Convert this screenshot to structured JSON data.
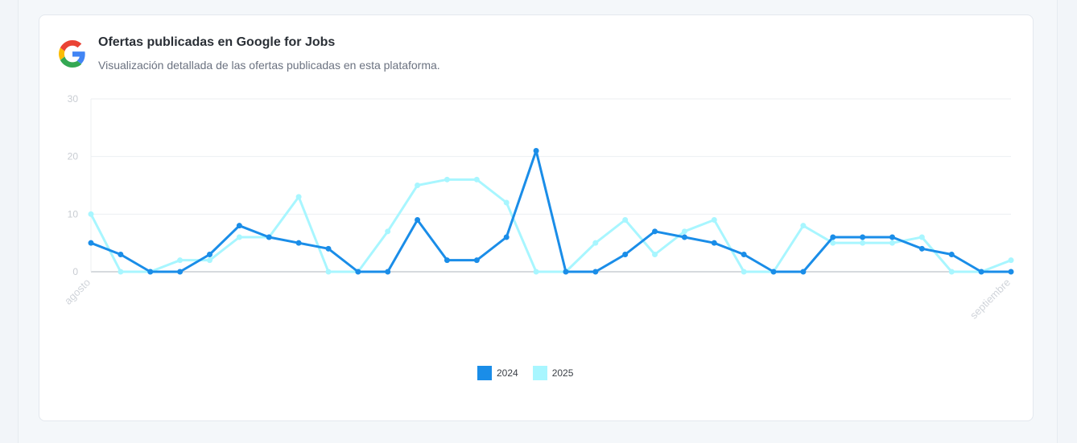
{
  "header": {
    "title": "Ofertas publicadas en Google for Jobs",
    "subtitle": "Visualización detallada de las ofertas publicadas en esta plataforma."
  },
  "logo": {
    "icon": "google-g-icon"
  },
  "chart_data": {
    "type": "line",
    "x": [
      "agosto",
      "",
      "",
      "",
      "",
      "",
      "",
      "",
      "",
      "",
      "",
      "",
      "",
      "",
      "",
      "",
      "",
      "",
      "",
      "",
      "",
      "",
      "",
      "",
      "",
      "",
      "",
      "",
      "",
      "",
      "",
      "septiembre"
    ],
    "x_tick_labels": [
      "agosto",
      "septiembre"
    ],
    "ylim": [
      0,
      30
    ],
    "y_ticks": [
      0,
      10,
      20,
      30
    ],
    "grid": true,
    "legend": "bottom-center",
    "series": [
      {
        "name": "2024",
        "color": "#1a8de8",
        "values": [
          5,
          3,
          0,
          0,
          3,
          8,
          6,
          5,
          4,
          0,
          0,
          9,
          2,
          2,
          6,
          21,
          0,
          0,
          3,
          7,
          6,
          5,
          3,
          0,
          0,
          6,
          6,
          6,
          4,
          3,
          0,
          0
        ]
      },
      {
        "name": "2025",
        "color": "#a8f6ff",
        "values": [
          10,
          0,
          0,
          2,
          2,
          6,
          6,
          13,
          0,
          0,
          7,
          15,
          16,
          16,
          12,
          0,
          0,
          5,
          9,
          3,
          7,
          9,
          0,
          0,
          8,
          5,
          5,
          5,
          6,
          0,
          0,
          2
        ]
      }
    ]
  }
}
